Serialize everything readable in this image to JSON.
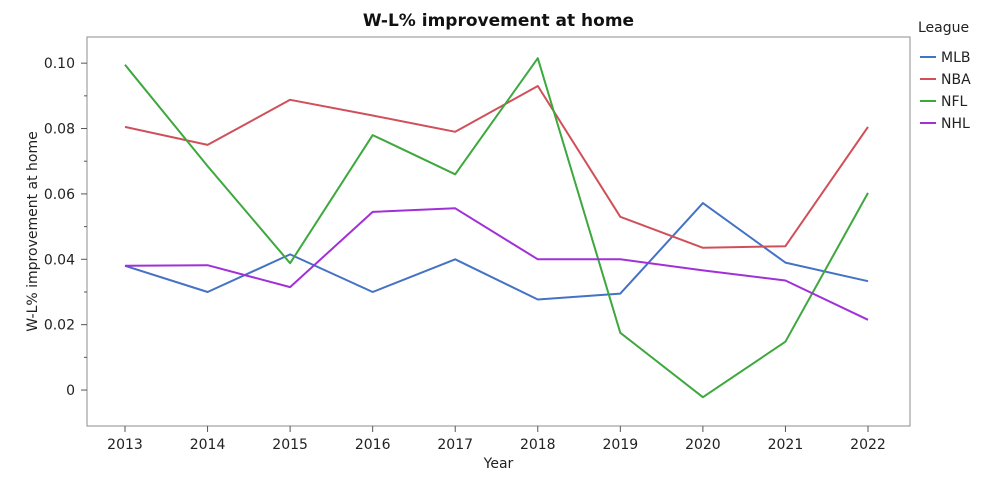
{
  "chart_data": {
    "type": "line",
    "title": "W-L% improvement at home",
    "xlabel": "Year",
    "ylabel": "W-L% improvement at home",
    "x": [
      "2013",
      "2014",
      "2015",
      "2016",
      "2017",
      "2018",
      "2019",
      "2020",
      "2021",
      "2022"
    ],
    "ylim": [
      -0.011,
      0.108
    ],
    "yticks": [
      0,
      0.02,
      0.04,
      0.06,
      0.08,
      0.1
    ],
    "ytick_labels": [
      "0",
      "0.02",
      "0.04",
      "0.06",
      "0.08",
      "0.10"
    ],
    "grid": false,
    "legend": {
      "title": "League",
      "placement": "right"
    },
    "series": [
      {
        "name": "MLB",
        "color": "#4472c4",
        "values": [
          0.038,
          0.03,
          0.0415,
          0.03,
          0.04,
          0.0277,
          0.0295,
          0.0572,
          0.039,
          0.0333
        ]
      },
      {
        "name": "NBA",
        "color": "#d0505a",
        "values": [
          0.0805,
          0.075,
          0.0888,
          0.084,
          0.079,
          0.093,
          0.053,
          0.0435,
          0.044,
          0.0805
        ]
      },
      {
        "name": "NFL",
        "color": "#3da83d",
        "values": [
          0.0995,
          0.0685,
          0.0388,
          0.078,
          0.066,
          0.1015,
          0.0175,
          -0.0022,
          0.0148,
          0.0603
        ]
      },
      {
        "name": "NHL",
        "color": "#a030d8",
        "values": [
          0.038,
          0.0382,
          0.0315,
          0.0545,
          0.0556,
          0.04,
          0.04,
          0.0366,
          0.0335,
          0.0215
        ]
      }
    ]
  }
}
